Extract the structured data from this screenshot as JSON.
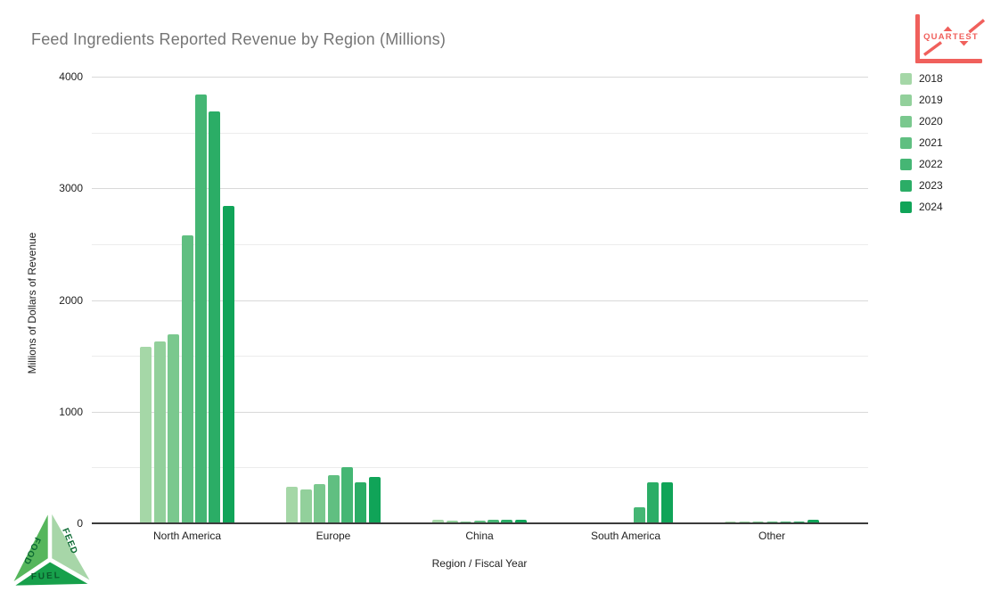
{
  "title": "Feed Ingredients Reported Revenue by Region (Millions)",
  "chart_data": {
    "type": "bar",
    "title": "Feed Ingredients Reported Revenue by Region (Millions)",
    "xlabel": "Region / Fiscal Year",
    "ylabel": "Millions of Dollars of Revenue",
    "ylim": [
      0,
      4000
    ],
    "ytick_values": [
      0,
      1000,
      2000,
      3000,
      4000
    ],
    "gridline_step": 500,
    "grid": true,
    "legend_position": "right",
    "categories": [
      "North America",
      "Europe",
      "China",
      "South America",
      "Other"
    ],
    "series": [
      {
        "name": "2018",
        "color": "#a5d7a7",
        "values": [
          1580,
          330,
          30,
          6,
          12
        ]
      },
      {
        "name": "2019",
        "color": "#92d09b",
        "values": [
          1630,
          300,
          20,
          6,
          12
        ]
      },
      {
        "name": "2020",
        "color": "#7ac88e",
        "values": [
          1690,
          355,
          15,
          6,
          13
        ]
      },
      {
        "name": "2021",
        "color": "#60bf81",
        "values": [
          2580,
          430,
          20,
          6,
          14
        ]
      },
      {
        "name": "2022",
        "color": "#45b674",
        "values": [
          3840,
          500,
          35,
          145,
          15
        ]
      },
      {
        "name": "2023",
        "color": "#2bad66",
        "values": [
          3690,
          370,
          35,
          365,
          16
        ]
      },
      {
        "name": "2024",
        "color": "#10a458",
        "values": [
          2840,
          415,
          33,
          370,
          28
        ]
      }
    ]
  },
  "branding": {
    "quartest": {
      "text": "QUARTEST",
      "color": "#f0605c"
    },
    "triangle": {
      "labels": {
        "food": "FOOD",
        "feed": "FEED",
        "fuel": "FUEL"
      },
      "colors": {
        "light": "#a7d6a8",
        "mid": "#56b65c",
        "dark": "#17a04b",
        "text": "#0c6a33"
      }
    }
  }
}
